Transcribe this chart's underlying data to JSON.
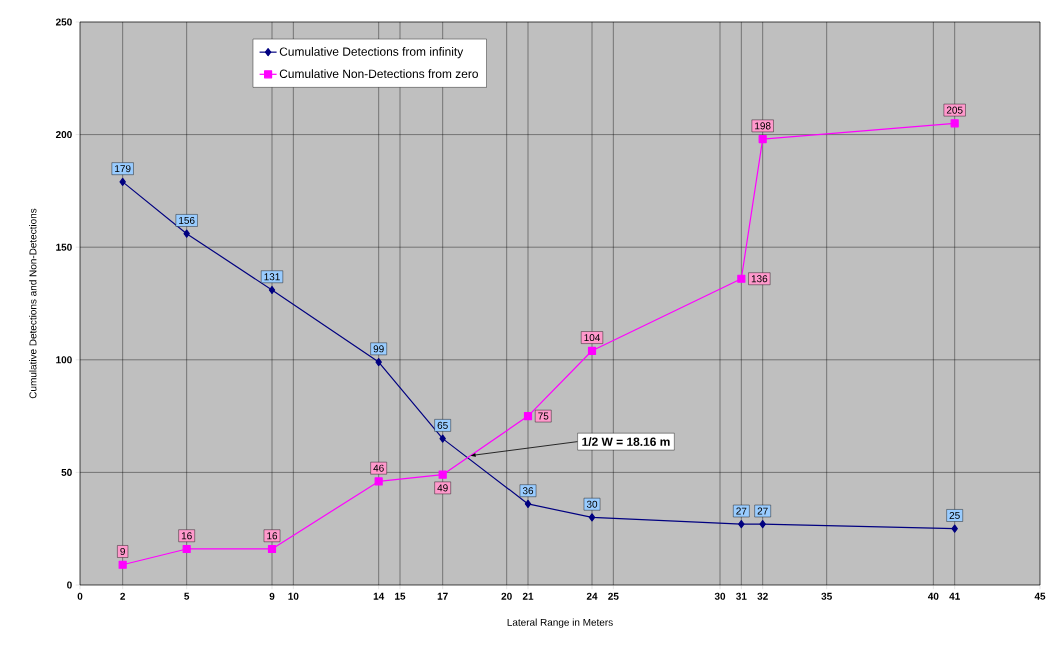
{
  "chart_data": {
    "type": "line",
    "xlabel": "Lateral Range in Meters",
    "ylabel": "Cumulative Detections and Non-Detections",
    "xlim": [
      0,
      45
    ],
    "ylim": [
      0,
      250
    ],
    "xticks": [
      0,
      2,
      5,
      9,
      10,
      14,
      15,
      17,
      20,
      21,
      24,
      25,
      30,
      31,
      32,
      35,
      40,
      41,
      45
    ],
    "yticks": [
      0,
      50,
      100,
      150,
      200,
      250
    ],
    "x": [
      2,
      5,
      9,
      14,
      17,
      21,
      24,
      31,
      32,
      41
    ],
    "series": [
      {
        "name": "Cumulative Detections from infinity",
        "color": "#000080",
        "values": [
          179,
          156,
          131,
          99,
          65,
          36,
          30,
          27,
          27,
          25
        ]
      },
      {
        "name": "Cumulative Non-Detections from zero",
        "color": "#ff00ff",
        "marker": "square",
        "values": [
          9,
          16,
          16,
          46,
          49,
          75,
          104,
          136,
          198,
          205
        ]
      }
    ],
    "marker": "diamond",
    "grid": true,
    "legend": "top left",
    "data_labels": true,
    "annotations": [
      {
        "text": "1/2 W = 18.16 m",
        "x": 18.16,
        "y": 57
      }
    ]
  }
}
